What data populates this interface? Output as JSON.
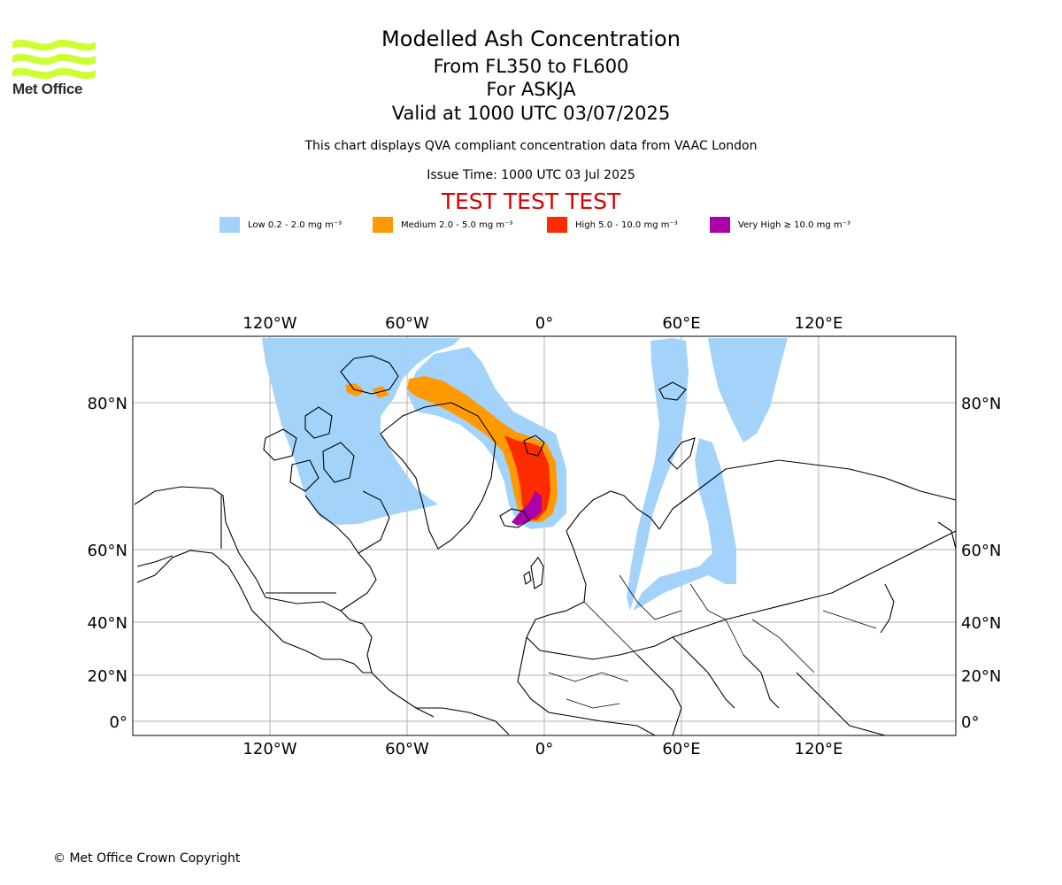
{
  "branding": {
    "logo_text": "Met Office",
    "logo_icon": "met-office-wave-logo",
    "logo_color": "#ccff33"
  },
  "header": {
    "title": "Modelled Ash Concentration",
    "level_range": "From FL350 to FL600",
    "volcano": "For ASKJA",
    "valid_time": "Valid at 1000 UTC 03/07/2025",
    "disclaimer": "This chart displays QVA compliant concentration data from VAAC London",
    "issue_time": "Issue Time: 1000 UTC 03 Jul 2025",
    "test_banner": "TEST TEST TEST",
    "test_color": "#dd0000"
  },
  "legend": [
    {
      "label": "Low 0.2 - 2.0 mg m⁻³",
      "color": "#a1d2fa"
    },
    {
      "label": "Medium 2.0 - 5.0 mg m⁻³",
      "color": "#ff9a05"
    },
    {
      "label": "High 5.0 - 10.0 mg m⁻³",
      "color": "#ff2b00"
    },
    {
      "label": "Very High ≥ 10.0 mg m⁻³",
      "color": "#aa00aa"
    }
  ],
  "map": {
    "lon_ticks": [
      {
        "label": "120°W",
        "lon": -120
      },
      {
        "label": "60°W",
        "lon": -60
      },
      {
        "label": "0°",
        "lon": 0
      },
      {
        "label": "60°E",
        "lon": 60
      },
      {
        "label": "120°E",
        "lon": 120
      }
    ],
    "lat_ticks": [
      {
        "label": "80°N",
        "lat": 80
      },
      {
        "label": "60°N",
        "lat": 60
      },
      {
        "label": "40°N",
        "lat": 40
      },
      {
        "label": "20°N",
        "lat": 20
      },
      {
        "label": "0°",
        "lat": 0
      }
    ],
    "lon_range": [
      -180,
      180
    ],
    "grid": true
  },
  "footer": {
    "copyright": "© Met Office Crown Copyright"
  }
}
